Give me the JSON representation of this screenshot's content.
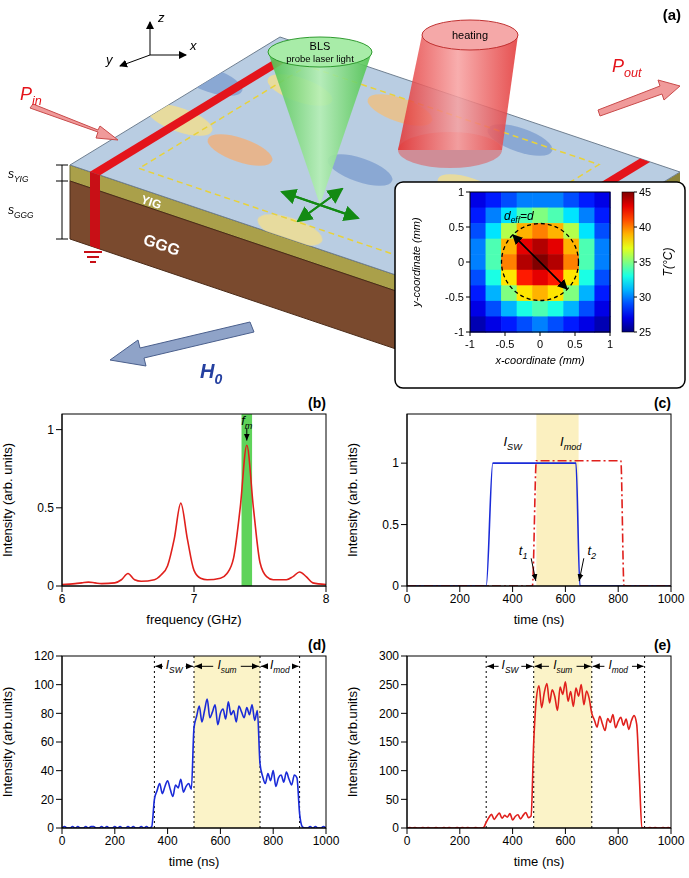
{
  "diagram": {
    "panel": "(a)",
    "axes": {
      "x": "x",
      "y": "y",
      "z": "z"
    },
    "probe": [
      "BLS",
      "probe laser light"
    ],
    "heating": "heating",
    "input": {
      "text": "P",
      "sub": "in"
    },
    "output": {
      "text": "P",
      "sub": "out"
    },
    "thickness": [
      {
        "text": "s",
        "sub": "YIG"
      },
      {
        "text": "s",
        "sub": "GGG"
      }
    ],
    "layers": [
      "YIG",
      "GGG"
    ],
    "field": {
      "text": "H",
      "sub": "0"
    },
    "inset": {
      "type": "heatmap",
      "x_label": "x-coordinate (mm)",
      "y_label": "y-coordinate (mm)",
      "xlim": [
        -1,
        1
      ],
      "ylim": [
        -1,
        1
      ],
      "xticks": [
        -1,
        -0.5,
        0,
        0.5,
        1
      ],
      "yticks": [
        -1,
        -0.5,
        0,
        0.5,
        1
      ],
      "cells": [
        [
          27,
          28,
          29,
          30,
          30,
          30,
          29,
          28,
          27
        ],
        [
          28,
          30,
          32,
          34,
          35,
          34,
          32,
          30,
          28
        ],
        [
          29,
          32,
          36,
          39,
          40,
          39,
          36,
          32,
          29
        ],
        [
          30,
          34,
          39,
          43,
          44,
          43,
          39,
          34,
          30
        ],
        [
          30,
          34,
          40,
          44,
          45,
          44,
          40,
          34,
          30
        ],
        [
          29,
          33,
          38,
          42,
          43,
          42,
          38,
          33,
          29
        ],
        [
          28,
          31,
          35,
          38,
          39,
          38,
          35,
          31,
          28
        ],
        [
          27,
          29,
          31,
          33,
          34,
          33,
          31,
          29,
          27
        ],
        [
          26,
          27,
          28,
          29,
          30,
          29,
          28,
          27,
          26
        ]
      ],
      "colorbar": {
        "label": "T(°C)",
        "range": [
          25,
          45
        ],
        "ticks": [
          25,
          30,
          35,
          40,
          45
        ]
      },
      "circle": {
        "x": 0,
        "y": 0,
        "diameter": 1.1,
        "label": {
          "text": "d",
          "sub": "eff",
          "rest": "=d"
        }
      }
    }
  },
  "chart_data": [
    {
      "panel": "(b)",
      "type": "line",
      "x_label": "frequency (GHz)",
      "y_label": "Intensity (arb. units)",
      "xlim": [
        6,
        8
      ],
      "ylim": [
        0,
        1.1
      ],
      "xticks": [
        6,
        7,
        8
      ],
      "yticks": [
        0,
        0.5,
        1
      ],
      "series": [
        {
          "color": "#e0201c",
          "line_style": "solid",
          "x": [
            6.0,
            6.1,
            6.15,
            6.2,
            6.25,
            6.3,
            6.4,
            6.45,
            6.5,
            6.55,
            6.6,
            6.7,
            6.75,
            6.8,
            6.85,
            6.9,
            6.95,
            7.0,
            7.05,
            7.1,
            7.2,
            7.25,
            7.3,
            7.35,
            7.4,
            7.45,
            7.5,
            7.55,
            7.6,
            7.7,
            7.75,
            7.8,
            7.85,
            7.9,
            8.0
          ],
          "values": [
            0.01,
            0.015,
            0.02,
            0.025,
            0.02,
            0.015,
            0.02,
            0.04,
            0.08,
            0.04,
            0.03,
            0.04,
            0.07,
            0.13,
            0.3,
            0.53,
            0.3,
            0.1,
            0.05,
            0.04,
            0.05,
            0.08,
            0.18,
            0.5,
            0.9,
            0.5,
            0.15,
            0.06,
            0.04,
            0.04,
            0.06,
            0.09,
            0.06,
            0.02,
            0.01
          ]
        }
      ],
      "bands": [
        {
          "from": 7.36,
          "to": 7.44,
          "color": "#5fd35a"
        }
      ],
      "annotations": [
        {
          "label": {
            "text": "f",
            "sub": "m"
          },
          "x": 7.4,
          "y": 1.03,
          "arrow_to": [
            7.4,
            0.93
          ]
        }
      ]
    },
    {
      "panel": "(c)",
      "type": "line",
      "x_label": "time (ns)",
      "y_label": "Intensity (arb. units)",
      "xlim": [
        0,
        1000
      ],
      "ylim": [
        0,
        1.4
      ],
      "xticks": [
        0,
        200,
        400,
        600,
        800,
        1000
      ],
      "yticks": [
        0,
        0.5,
        1
      ],
      "series": [
        {
          "color": "#1a2bd8",
          "line_style": "solid",
          "x": [
            0,
            300,
            325,
            640,
            655,
            1000
          ],
          "values": [
            0,
            0,
            1,
            1,
            0,
            0
          ]
        },
        {
          "color": "#e0201c",
          "line_style": "dashdot",
          "x": [
            0,
            475,
            490,
            810,
            822,
            1000
          ],
          "values": [
            0,
            0,
            1.02,
            1.02,
            0,
            0
          ]
        }
      ],
      "bands": [
        {
          "from": 490,
          "to": 650,
          "color": "#fbf0c0"
        }
      ],
      "annotations": [
        {
          "label": {
            "text": "I",
            "sub": "SW"
          },
          "x": 400,
          "y": 1.14
        },
        {
          "label": {
            "text": "I",
            "sub": "mod"
          },
          "x": 620,
          "y": 1.14
        },
        {
          "label": {
            "text": "t",
            "sub": "1"
          },
          "x": 440,
          "y": 0.25,
          "arrow_to": [
            488,
            0.04
          ]
        },
        {
          "label": {
            "text": "t",
            "sub": "2"
          },
          "x": 700,
          "y": 0.25,
          "arrow_to": [
            652,
            0.04
          ]
        }
      ]
    },
    {
      "panel": "(d)",
      "type": "line",
      "x_label": "time (ns)",
      "y_label": "Intensity (arb.units)",
      "xlim": [
        0,
        1000
      ],
      "ylim": [
        0,
        120
      ],
      "xticks": [
        0,
        200,
        400,
        600,
        800,
        1000
      ],
      "yticks": [
        0,
        20,
        40,
        60,
        80,
        100,
        120
      ],
      "series": [
        {
          "color": "#1a2bd8",
          "line_style": "solid",
          "x": [
            0,
            10,
            20,
            30,
            40,
            50,
            60,
            70,
            80,
            90,
            100,
            110,
            120,
            130,
            140,
            150,
            160,
            170,
            180,
            190,
            200,
            210,
            220,
            230,
            240,
            250,
            260,
            270,
            280,
            290,
            300,
            310,
            320,
            330,
            340,
            350,
            360,
            370,
            380,
            390,
            400,
            410,
            420,
            430,
            440,
            450,
            460,
            470,
            480,
            490,
            500,
            510,
            520,
            530,
            540,
            550,
            560,
            570,
            580,
            590,
            600,
            610,
            620,
            630,
            640,
            650,
            660,
            670,
            680,
            690,
            700,
            710,
            720,
            730,
            740,
            750,
            760,
            770,
            780,
            790,
            800,
            810,
            820,
            830,
            840,
            850,
            860,
            870,
            880,
            890,
            900,
            910,
            920,
            930,
            940,
            950,
            960,
            970,
            980,
            990,
            1000
          ],
          "values": [
            0,
            1,
            0,
            0,
            1,
            0,
            1,
            0,
            0,
            1,
            0,
            1,
            1,
            0,
            0,
            1,
            0,
            1,
            0,
            0,
            1,
            0,
            1,
            0,
            0,
            1,
            0,
            1,
            0,
            0,
            1,
            0,
            1,
            0,
            1,
            20,
            26,
            31,
            24,
            29,
            33,
            27,
            22,
            30,
            28,
            34,
            25,
            29,
            31,
            27,
            70,
            78,
            85,
            74,
            82,
            90,
            77,
            81,
            86,
            72,
            80,
            83,
            76,
            88,
            79,
            82,
            74,
            85,
            81,
            77,
            84,
            79,
            86,
            75,
            82,
            45,
            36,
            31,
            38,
            33,
            40,
            29,
            35,
            37,
            32,
            39,
            34,
            30,
            37,
            35,
            10,
            1,
            0,
            0,
            1,
            0,
            1,
            0,
            0,
            1,
            0
          ]
        }
      ],
      "bands": [
        {
          "from": 500,
          "to": 750,
          "color": "#fbf3c8"
        }
      ],
      "segments": [
        {
          "label": {
            "text": "I",
            "sub": "SW"
          },
          "from": 350,
          "to": 500
        },
        {
          "label": {
            "text": "I",
            "sub": "sum"
          },
          "from": 500,
          "to": 750
        },
        {
          "label": {
            "text": "I",
            "sub": "mod"
          },
          "from": 750,
          "to": 900
        }
      ]
    },
    {
      "panel": "(e)",
      "type": "line",
      "x_label": "time (ns)",
      "y_label": "Intensity (arb.units)",
      "xlim": [
        0,
        1000
      ],
      "ylim": [
        0,
        300
      ],
      "xticks": [
        0,
        200,
        400,
        600,
        800,
        1000
      ],
      "yticks": [
        0,
        50,
        100,
        150,
        200,
        250,
        300
      ],
      "series": [
        {
          "color": "#e0201c",
          "line_style": "solid",
          "x": [
            0,
            10,
            20,
            30,
            40,
            50,
            60,
            70,
            80,
            90,
            100,
            110,
            120,
            130,
            140,
            150,
            160,
            170,
            180,
            190,
            200,
            210,
            220,
            230,
            240,
            250,
            260,
            270,
            280,
            290,
            300,
            310,
            320,
            330,
            340,
            350,
            360,
            370,
            380,
            390,
            400,
            410,
            420,
            430,
            440,
            450,
            460,
            470,
            480,
            490,
            500,
            510,
            520,
            530,
            540,
            550,
            560,
            570,
            580,
            590,
            600,
            610,
            620,
            630,
            640,
            650,
            660,
            670,
            680,
            690,
            700,
            710,
            720,
            730,
            740,
            750,
            760,
            770,
            780,
            790,
            800,
            810,
            820,
            830,
            840,
            850,
            860,
            870,
            880,
            890,
            900,
            910,
            920,
            930,
            940,
            950,
            960,
            970,
            980,
            990,
            1000
          ],
          "values": [
            0,
            1,
            0,
            1,
            0,
            0,
            1,
            0,
            1,
            0,
            0,
            1,
            0,
            0,
            1,
            0,
            1,
            0,
            0,
            1,
            0,
            1,
            0,
            1,
            0,
            0,
            1,
            0,
            0,
            1,
            10,
            18,
            24,
            15,
            21,
            26,
            17,
            22,
            19,
            25,
            14,
            20,
            23,
            16,
            22,
            27,
            18,
            21,
            150,
            225,
            248,
            210,
            236,
            252,
            218,
            241,
            229,
            205,
            246,
            233,
            255,
            221,
            238,
            212,
            244,
            230,
            250,
            215,
            239,
            226,
            200,
            188,
            176,
            195,
            182,
            170,
            191,
            184,
            198,
            175,
            186,
            193,
            179,
            190,
            172,
            187,
            196,
            181,
            90,
            1,
            0,
            0,
            1,
            0,
            1,
            0,
            0,
            1,
            0,
            1,
            0
          ]
        }
      ],
      "bands": [
        {
          "from": 480,
          "to": 700,
          "color": "#fbf3c8"
        }
      ],
      "segments": [
        {
          "label": {
            "text": "I",
            "sub": "SW"
          },
          "from": 300,
          "to": 480
        },
        {
          "label": {
            "text": "I",
            "sub": "sum"
          },
          "from": 480,
          "to": 700
        },
        {
          "label": {
            "text": "I",
            "sub": "mod"
          },
          "from": 700,
          "to": 900
        }
      ]
    }
  ]
}
